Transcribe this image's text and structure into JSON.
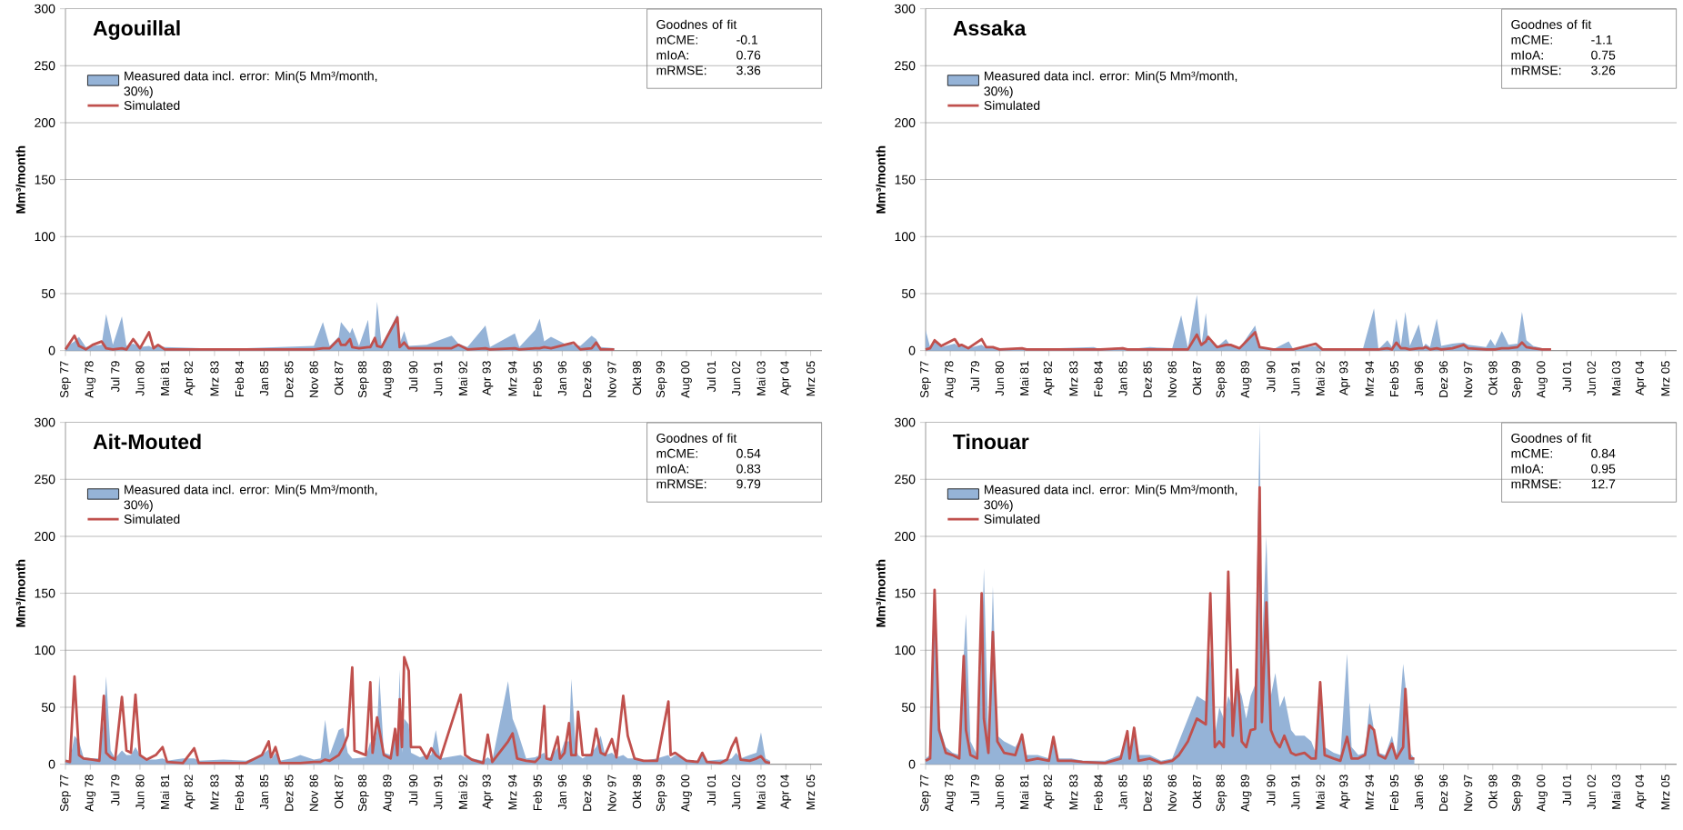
{
  "chart_data": [
    {
      "type": "line",
      "title": "Agouillal",
      "ylabel": "Mm³/month",
      "xlim": [
        "1977-09",
        "2005-08"
      ],
      "ylim": [
        0,
        300
      ],
      "yticks": [
        0,
        50,
        100,
        150,
        200,
        250,
        300
      ],
      "grid": "y",
      "legend": "top left",
      "xticks": [
        {
          "value": "1977-09",
          "label": "Sep 77"
        },
        {
          "value": "1978-08",
          "label": "Aug 78"
        },
        {
          "value": "1979-07",
          "label": "Jul 79"
        },
        {
          "value": "1980-06",
          "label": "Jun 80"
        },
        {
          "value": "1981-05",
          "label": "Mai 81"
        },
        {
          "value": "1982-04",
          "label": "Apr 82"
        },
        {
          "value": "1983-03",
          "label": "Mrz 83"
        },
        {
          "value": "1984-02",
          "label": "Feb 84"
        },
        {
          "value": "1985-01",
          "label": "Jan 85"
        },
        {
          "value": "1985-12",
          "label": "Dez 85"
        },
        {
          "value": "1986-11",
          "label": "Nov 86"
        },
        {
          "value": "1987-10",
          "label": "Okt 87"
        },
        {
          "value": "1988-09",
          "label": "Sep 88"
        },
        {
          "value": "1989-08",
          "label": "Aug 89"
        },
        {
          "value": "1990-07",
          "label": "Jul 90"
        },
        {
          "value": "1991-06",
          "label": "Jun 91"
        },
        {
          "value": "1992-05",
          "label": "Mai 92"
        },
        {
          "value": "1993-04",
          "label": "Apr 93"
        },
        {
          "value": "1994-03",
          "label": "Mrz 94"
        },
        {
          "value": "1995-02",
          "label": "Feb 95"
        },
        {
          "value": "1996-01",
          "label": "Jan 96"
        },
        {
          "value": "1996-12",
          "label": "Dez 96"
        },
        {
          "value": "1997-11",
          "label": "Nov 97"
        },
        {
          "value": "1998-10",
          "label": "Okt 98"
        },
        {
          "value": "1999-09",
          "label": "Sep 99"
        },
        {
          "value": "2000-08",
          "label": "Aug 00"
        },
        {
          "value": "2001-07",
          "label": "Jul 01"
        },
        {
          "value": "2002-06",
          "label": "Jun 02"
        },
        {
          "value": "2003-05",
          "label": "Mai 03"
        },
        {
          "value": "2004-04",
          "label": "Apr 04"
        },
        {
          "value": "2005-03",
          "label": "Mrz 05"
        }
      ],
      "annotations": [
        "Goodnes of fit",
        "mCME:",
        "-0.1",
        "mIoA:",
        "0.76",
        "mRMSE:",
        "3.36"
      ],
      "series": [
        {
          "name": "Measured data incl. error: Min(5 Mm³/month, 30%)",
          "type": "area",
          "color": "#95b3d7",
          "x": [
            "1977-09",
            "1978-01",
            "1978-03",
            "1978-06",
            "1978-09",
            "1979-01",
            "1979-03",
            "1979-06",
            "1979-10",
            "1979-12",
            "1980-03",
            "1980-06",
            "1980-10",
            "1980-12",
            "1981-02",
            "1981-05",
            "1982-09",
            "1984-05",
            "1985-08",
            "1986-11",
            "1987-03",
            "1987-06",
            "1987-10",
            "1987-11",
            "1988-01",
            "1988-03",
            "1988-04",
            "1988-07",
            "1988-11",
            "1988-12",
            "1989-02",
            "1989-03",
            "1989-05",
            "1989-12",
            "1990-01",
            "1990-03",
            "1990-05",
            "1991-01",
            "1991-12",
            "1992-03",
            "1992-07",
            "1993-03",
            "1993-05",
            "1994-04",
            "1994-06",
            "1995-01",
            "1995-03",
            "1995-05",
            "1995-08",
            "1996-02",
            "1996-06",
            "1996-09",
            "1997-02",
            "1997-04",
            "1997-06",
            "1997-12"
          ],
          "values": [
            3,
            8,
            12,
            3,
            4,
            5,
            32,
            5,
            30,
            4,
            6,
            3,
            4,
            2,
            4,
            3,
            2,
            2,
            3,
            4,
            25,
            4,
            12,
            25,
            20,
            15,
            20,
            4,
            27,
            5,
            12,
            43,
            5,
            32,
            6,
            17,
            4,
            5,
            13,
            6,
            3,
            22,
            3,
            15,
            3,
            18,
            28,
            8,
            12,
            6,
            5,
            4,
            13,
            10,
            3,
            2
          ]
        },
        {
          "name": "Simulated",
          "color": "#c0504d",
          "x": [
            "1977-09",
            "1978-01",
            "1978-03",
            "1978-06",
            "1978-09",
            "1979-01",
            "1979-03",
            "1979-06",
            "1979-10",
            "1979-12",
            "1980-03",
            "1980-06",
            "1980-10",
            "1980-12",
            "1981-02",
            "1981-05",
            "1982-09",
            "1984-05",
            "1985-08",
            "1986-11",
            "1987-03",
            "1987-06",
            "1987-10",
            "1987-11",
            "1988-01",
            "1988-03",
            "1988-04",
            "1988-07",
            "1988-11",
            "1988-12",
            "1989-02",
            "1989-03",
            "1989-05",
            "1989-12",
            "1990-01",
            "1990-03",
            "1990-05",
            "1991-01",
            "1991-12",
            "1992-03",
            "1992-07",
            "1993-03",
            "1993-05",
            "1994-04",
            "1994-06",
            "1995-01",
            "1995-03",
            "1995-05",
            "1995-08",
            "1996-02",
            "1996-06",
            "1996-09",
            "1997-02",
            "1997-04",
            "1997-06",
            "1997-12"
          ],
          "values": [
            1,
            13,
            4,
            1,
            5,
            8,
            2,
            1,
            2,
            1,
            10,
            2,
            16,
            2,
            5,
            1,
            1,
            1,
            1,
            1,
            2,
            2,
            10,
            5,
            5,
            10,
            3,
            2,
            3,
            3,
            11,
            4,
            3,
            29,
            3,
            7,
            2,
            2,
            2,
            5,
            1,
            2,
            1,
            2,
            1,
            2,
            2,
            3,
            2,
            5,
            7,
            1,
            2,
            7,
            1,
            1
          ]
        }
      ]
    },
    {
      "type": "line",
      "title": "Assaka",
      "ylabel": "Mm³/month",
      "xlim": [
        "1977-09",
        "2005-08"
      ],
      "ylim": [
        0,
        300
      ],
      "yticks": [
        0,
        50,
        100,
        150,
        200,
        250,
        300
      ],
      "grid": "y",
      "legend": "top left",
      "xticks": [
        {
          "value": "1977-09",
          "label": "Sep 77"
        },
        {
          "value": "1978-08",
          "label": "Aug 78"
        },
        {
          "value": "1979-07",
          "label": "Jul 79"
        },
        {
          "value": "1980-06",
          "label": "Jun 80"
        },
        {
          "value": "1981-05",
          "label": "Mai 81"
        },
        {
          "value": "1982-04",
          "label": "Apr 82"
        },
        {
          "value": "1983-03",
          "label": "Mrz 83"
        },
        {
          "value": "1984-02",
          "label": "Feb 84"
        },
        {
          "value": "1985-01",
          "label": "Jan 85"
        },
        {
          "value": "1985-12",
          "label": "Dez 85"
        },
        {
          "value": "1986-11",
          "label": "Nov 86"
        },
        {
          "value": "1987-10",
          "label": "Okt 87"
        },
        {
          "value": "1988-09",
          "label": "Sep 88"
        },
        {
          "value": "1989-08",
          "label": "Aug 89"
        },
        {
          "value": "1990-07",
          "label": "Jul 90"
        },
        {
          "value": "1991-06",
          "label": "Jun 91"
        },
        {
          "value": "1992-05",
          "label": "Mai 92"
        },
        {
          "value": "1993-04",
          "label": "Apr 93"
        },
        {
          "value": "1994-03",
          "label": "Mrz 94"
        },
        {
          "value": "1995-02",
          "label": "Feb 95"
        },
        {
          "value": "1996-01",
          "label": "Jan 96"
        },
        {
          "value": "1996-12",
          "label": "Dez 96"
        },
        {
          "value": "1997-11",
          "label": "Nov 97"
        },
        {
          "value": "1998-10",
          "label": "Okt 98"
        },
        {
          "value": "1999-09",
          "label": "Sep 99"
        },
        {
          "value": "2000-08",
          "label": "Aug 00"
        },
        {
          "value": "2001-07",
          "label": "Jul 01"
        },
        {
          "value": "2002-06",
          "label": "Jun 02"
        },
        {
          "value": "2003-05",
          "label": "Mai 03"
        },
        {
          "value": "2004-04",
          "label": "Apr 04"
        },
        {
          "value": "2005-03",
          "label": "Mrz 05"
        }
      ],
      "annotations": [
        "Goodnes of fit",
        "mCME:",
        "-1.1",
        "mIoA:",
        "0.75",
        "mRMSE:",
        "3.26"
      ],
      "series": [
        {
          "name": "Measured data incl. error: Min(5 Mm³/month, 30%)",
          "type": "area",
          "color": "#95b3d7",
          "x": [
            "1977-09",
            "1977-11",
            "1978-01",
            "1978-04",
            "1978-10",
            "1978-12",
            "1979-01",
            "1979-04",
            "1979-10",
            "1979-12",
            "1980-03",
            "1980-06",
            "1981-04",
            "1981-06",
            "1983-12",
            "1984-03",
            "1985-01",
            "1985-03",
            "1986-01",
            "1986-11",
            "1987-03",
            "1987-06",
            "1987-10",
            "1987-12",
            "1988-02",
            "1988-03",
            "1988-07",
            "1988-11",
            "1989-01",
            "1989-05",
            "1989-12",
            "1990-02",
            "1990-08",
            "1991-03",
            "1991-05",
            "1992-03",
            "1992-06",
            "1993-12",
            "1994-05",
            "1994-07",
            "1994-11",
            "1995-01",
            "1995-03",
            "1995-05",
            "1995-07",
            "1995-09",
            "1996-01",
            "1996-03",
            "1996-04",
            "1996-06",
            "1996-09",
            "1996-11",
            "1997-04",
            "1997-09",
            "1997-11",
            "1998-07",
            "1998-09",
            "1998-11",
            "1999-02",
            "1999-05",
            "1999-09",
            "1999-11",
            "2000-01",
            "2000-04",
            "2000-08",
            "2000-12"
          ],
          "values": [
            18,
            3,
            8,
            3,
            6,
            3,
            4,
            2,
            5,
            2,
            3,
            1,
            2,
            1,
            3,
            1,
            3,
            1,
            3,
            2,
            31,
            2,
            49,
            4,
            33,
            10,
            3,
            10,
            4,
            2,
            22,
            3,
            1,
            8,
            1,
            4,
            1,
            1,
            37,
            1,
            9,
            3,
            28,
            4,
            34,
            4,
            23,
            3,
            6,
            3,
            28,
            4,
            6,
            7,
            5,
            3,
            10,
            4,
            17,
            5,
            6,
            34,
            9,
            4,
            2,
            1
          ]
        },
        {
          "name": "Simulated",
          "color": "#c0504d",
          "x": [
            "1977-09",
            "1977-11",
            "1978-01",
            "1978-04",
            "1978-10",
            "1978-12",
            "1979-01",
            "1979-04",
            "1979-10",
            "1979-12",
            "1980-03",
            "1980-06",
            "1981-04",
            "1981-06",
            "1983-12",
            "1984-03",
            "1985-01",
            "1985-03",
            "1986-01",
            "1986-11",
            "1987-03",
            "1987-06",
            "1987-10",
            "1987-12",
            "1988-02",
            "1988-03",
            "1988-07",
            "1988-11",
            "1989-01",
            "1989-05",
            "1989-12",
            "1990-02",
            "1990-08",
            "1991-03",
            "1991-05",
            "1992-03",
            "1992-06",
            "1993-12",
            "1994-05",
            "1994-07",
            "1994-11",
            "1995-01",
            "1995-03",
            "1995-05",
            "1995-07",
            "1995-09",
            "1996-01",
            "1996-03",
            "1996-04",
            "1996-06",
            "1996-09",
            "1996-11",
            "1997-04",
            "1997-09",
            "1997-11",
            "1998-07",
            "1998-09",
            "1998-11",
            "1999-02",
            "1999-05",
            "1999-09",
            "1999-11",
            "2000-01",
            "2000-04",
            "2000-08",
            "2000-12"
          ],
          "values": [
            1,
            2,
            9,
            4,
            10,
            4,
            5,
            2,
            10,
            3,
            3,
            1,
            2,
            1,
            1,
            1,
            2,
            1,
            1,
            1,
            1,
            1,
            14,
            5,
            8,
            12,
            3,
            5,
            5,
            2,
            16,
            3,
            1,
            1,
            1,
            6,
            1,
            1,
            1,
            1,
            2,
            1,
            7,
            2,
            2,
            1,
            2,
            2,
            3,
            1,
            2,
            1,
            2,
            5,
            2,
            1,
            1,
            1,
            2,
            2,
            3,
            7,
            3,
            2,
            1,
            1
          ]
        }
      ]
    },
    {
      "type": "line",
      "title": "Ait-Mouted",
      "ylabel": "Mm³/month",
      "xlim": [
        "1977-09",
        "2005-08"
      ],
      "ylim": [
        0,
        300
      ],
      "yticks": [
        0,
        50,
        100,
        150,
        200,
        250,
        300
      ],
      "grid": "y",
      "legend": "top left",
      "xticks": [
        {
          "value": "1977-09",
          "label": "Sep 77"
        },
        {
          "value": "1978-08",
          "label": "Aug 78"
        },
        {
          "value": "1979-07",
          "label": "Jul 79"
        },
        {
          "value": "1980-06",
          "label": "Jun 80"
        },
        {
          "value": "1981-05",
          "label": "Mai 81"
        },
        {
          "value": "1982-04",
          "label": "Apr 82"
        },
        {
          "value": "1983-03",
          "label": "Mrz 83"
        },
        {
          "value": "1984-02",
          "label": "Feb 84"
        },
        {
          "value": "1985-01",
          "label": "Jan 85"
        },
        {
          "value": "1985-12",
          "label": "Dez 85"
        },
        {
          "value": "1986-11",
          "label": "Nov 86"
        },
        {
          "value": "1987-10",
          "label": "Okt 87"
        },
        {
          "value": "1988-09",
          "label": "Sep 88"
        },
        {
          "value": "1989-08",
          "label": "Aug 89"
        },
        {
          "value": "1990-07",
          "label": "Jul 90"
        },
        {
          "value": "1991-06",
          "label": "Jun 91"
        },
        {
          "value": "1992-05",
          "label": "Mai 92"
        },
        {
          "value": "1993-04",
          "label": "Apr 93"
        },
        {
          "value": "1994-03",
          "label": "Mrz 94"
        },
        {
          "value": "1995-02",
          "label": "Feb 95"
        },
        {
          "value": "1996-01",
          "label": "Jan 96"
        },
        {
          "value": "1996-12",
          "label": "Dez 96"
        },
        {
          "value": "1997-11",
          "label": "Nov 97"
        },
        {
          "value": "1998-10",
          "label": "Okt 98"
        },
        {
          "value": "1999-09",
          "label": "Sep 99"
        },
        {
          "value": "2000-08",
          "label": "Aug 00"
        },
        {
          "value": "2001-07",
          "label": "Jul 01"
        },
        {
          "value": "2002-06",
          "label": "Jun 02"
        },
        {
          "value": "2003-05",
          "label": "Mai 03"
        },
        {
          "value": "2004-04",
          "label": "Apr 04"
        },
        {
          "value": "2005-03",
          "label": "Mrz 05"
        }
      ],
      "annotations": [
        "Goodnes of fit",
        "mCME:",
        "0.54",
        "mIoA:",
        "0.83",
        "mRMSE:",
        "9.79"
      ],
      "series": [
        {
          "name": "Measured data incl. error: Min(5 Mm³/month, 30%)",
          "type": "area",
          "color": "#95b3d7",
          "x": [
            "1977-09",
            "1977-11",
            "1978-01",
            "1978-03",
            "1978-05",
            "1978-09",
            "1978-12",
            "1979-02",
            "1979-03",
            "1979-05",
            "1979-07",
            "1979-10",
            "1979-12",
            "1980-02",
            "1980-04",
            "1980-06",
            "1980-09",
            "1981-01",
            "1981-04",
            "1981-06",
            "1982-01",
            "1982-06",
            "1982-08",
            "1983-07",
            "1984-05",
            "1984-12",
            "1985-03",
            "1985-04",
            "1985-06",
            "1985-08",
            "1986-01",
            "1986-05",
            "1986-11",
            "1987-02",
            "1987-04",
            "1987-06",
            "1987-10",
            "1987-12",
            "1988-02",
            "1988-04",
            "1988-05",
            "1988-10",
            "1988-12",
            "1989-01",
            "1989-03",
            "1989-04",
            "1989-06",
            "1989-09",
            "1989-11",
            "1989-12",
            "1990-01",
            "1990-02",
            "1990-03",
            "1990-05",
            "1990-06",
            "1990-10",
            "1991-01",
            "1991-03",
            "1991-05",
            "1991-07",
            "1992-04",
            "1992-06",
            "1992-09",
            "1993-02",
            "1993-04",
            "1993-06",
            "1994-01",
            "1994-03",
            "1994-05",
            "1994-09",
            "1995-01",
            "1995-03",
            "1995-05",
            "1995-06",
            "1995-08",
            "1995-11",
            "1995-12",
            "1996-02",
            "1996-04",
            "1996-05",
            "1996-07",
            "1996-08",
            "1996-10",
            "1997-02",
            "1997-04",
            "1997-06",
            "1997-08",
            "1997-11",
            "1998-01",
            "1998-04",
            "1998-06",
            "1998-09",
            "1999-01",
            "1999-07",
            "1999-12",
            "2000-01",
            "2000-03",
            "2000-08",
            "2001-01",
            "2001-03",
            "2001-05",
            "2001-11",
            "2002-02",
            "2002-04",
            "2002-06",
            "2002-08",
            "2002-12",
            "2003-03",
            "2003-05",
            "2003-07",
            "2003-09"
          ],
          "values": [
            3,
            3,
            25,
            20,
            6,
            5,
            5,
            40,
            77,
            12,
            5,
            12,
            8,
            8,
            15,
            8,
            4,
            4,
            5,
            3,
            5,
            5,
            3,
            4,
            3,
            8,
            13,
            4,
            10,
            3,
            5,
            8,
            4,
            5,
            39,
            8,
            30,
            32,
            10,
            5,
            5,
            6,
            20,
            8,
            30,
            78,
            10,
            8,
            25,
            15,
            83,
            10,
            40,
            35,
            10,
            6,
            8,
            8,
            30,
            5,
            8,
            6,
            5,
            3,
            6,
            3,
            73,
            40,
            30,
            5,
            6,
            8,
            10,
            5,
            6,
            15,
            8,
            20,
            20,
            75,
            15,
            8,
            5,
            10,
            15,
            25,
            8,
            10,
            6,
            8,
            5,
            5,
            3,
            5,
            8,
            5,
            8,
            4,
            3,
            8,
            3,
            4,
            4,
            5,
            10,
            5,
            8,
            10,
            28,
            5,
            3
          ]
        },
        {
          "name": "Simulated",
          "color": "#c0504d",
          "x": [
            "1977-09",
            "1977-11",
            "1978-01",
            "1978-03",
            "1978-05",
            "1978-09",
            "1978-12",
            "1979-02",
            "1979-03",
            "1979-05",
            "1979-07",
            "1979-10",
            "1979-12",
            "1980-02",
            "1980-04",
            "1980-06",
            "1980-09",
            "1981-01",
            "1981-04",
            "1981-06",
            "1982-01",
            "1982-06",
            "1982-08",
            "1983-07",
            "1984-05",
            "1984-12",
            "1985-03",
            "1985-04",
            "1985-06",
            "1985-08",
            "1986-01",
            "1986-05",
            "1986-11",
            "1987-02",
            "1987-04",
            "1987-06",
            "1987-10",
            "1987-12",
            "1988-02",
            "1988-04",
            "1988-05",
            "1988-10",
            "1988-12",
            "1989-01",
            "1989-03",
            "1989-04",
            "1989-06",
            "1989-09",
            "1989-11",
            "1989-12",
            "1990-01",
            "1990-02",
            "1990-03",
            "1990-05",
            "1990-06",
            "1990-10",
            "1991-01",
            "1991-03",
            "1991-05",
            "1991-07",
            "1992-04",
            "1992-06",
            "1992-09",
            "1993-02",
            "1993-04",
            "1993-06",
            "1994-01",
            "1994-03",
            "1994-05",
            "1994-09",
            "1995-01",
            "1995-03",
            "1995-05",
            "1995-06",
            "1995-08",
            "1995-11",
            "1995-12",
            "1996-02",
            "1996-04",
            "1996-05",
            "1996-07",
            "1996-08",
            "1996-10",
            "1997-02",
            "1997-04",
            "1997-06",
            "1997-08",
            "1997-11",
            "1998-01",
            "1998-04",
            "1998-06",
            "1998-09",
            "1999-01",
            "1999-07",
            "1999-12",
            "2000-01",
            "2000-03",
            "2000-08",
            "2001-01",
            "2001-03",
            "2001-05",
            "2001-11",
            "2002-02",
            "2002-04",
            "2002-06",
            "2002-08",
            "2002-12",
            "2003-03",
            "2003-05",
            "2003-07",
            "2003-09"
          ],
          "values": [
            3,
            2,
            77,
            8,
            5,
            4,
            3,
            60,
            10,
            6,
            4,
            59,
            12,
            10,
            61,
            8,
            4,
            8,
            15,
            2,
            1,
            14,
            1,
            1,
            1,
            8,
            20,
            6,
            15,
            1,
            1,
            1,
            2,
            2,
            4,
            3,
            8,
            15,
            25,
            85,
            12,
            8,
            72,
            10,
            41,
            30,
            8,
            5,
            31,
            8,
            57,
            15,
            94,
            82,
            15,
            15,
            5,
            14,
            8,
            5,
            61,
            8,
            4,
            1,
            26,
            2,
            20,
            27,
            5,
            3,
            2,
            6,
            51,
            5,
            4,
            24,
            5,
            10,
            36,
            8,
            8,
            46,
            8,
            8,
            31,
            10,
            8,
            22,
            6,
            60,
            25,
            5,
            3,
            3,
            55,
            8,
            10,
            3,
            2,
            10,
            2,
            1,
            4,
            15,
            23,
            4,
            3,
            5,
            7,
            2,
            1
          ]
        }
      ]
    },
    {
      "type": "line",
      "title": "Tinouar",
      "ylabel": "Mm³/month",
      "xlim": [
        "1977-09",
        "2005-08"
      ],
      "ylim": [
        0,
        300
      ],
      "yticks": [
        0,
        50,
        100,
        150,
        200,
        250,
        300
      ],
      "grid": "y",
      "legend": "top left",
      "xticks": [
        {
          "value": "1977-09",
          "label": "Sep 77"
        },
        {
          "value": "1978-08",
          "label": "Aug 78"
        },
        {
          "value": "1979-07",
          "label": "Jul 79"
        },
        {
          "value": "1980-06",
          "label": "Jun 80"
        },
        {
          "value": "1981-05",
          "label": "Mai 81"
        },
        {
          "value": "1982-04",
          "label": "Apr 82"
        },
        {
          "value": "1983-03",
          "label": "Mrz 83"
        },
        {
          "value": "1984-02",
          "label": "Feb 84"
        },
        {
          "value": "1985-01",
          "label": "Jan 85"
        },
        {
          "value": "1985-12",
          "label": "Dez 85"
        },
        {
          "value": "1986-11",
          "label": "Nov 86"
        },
        {
          "value": "1987-10",
          "label": "Okt 87"
        },
        {
          "value": "1988-09",
          "label": "Sep 88"
        },
        {
          "value": "1989-08",
          "label": "Aug 89"
        },
        {
          "value": "1990-07",
          "label": "Jul 90"
        },
        {
          "value": "1991-06",
          "label": "Jun 91"
        },
        {
          "value": "1992-05",
          "label": "Mai 92"
        },
        {
          "value": "1993-04",
          "label": "Apr 93"
        },
        {
          "value": "1994-03",
          "label": "Mrz 94"
        },
        {
          "value": "1995-02",
          "label": "Feb 95"
        },
        {
          "value": "1996-01",
          "label": "Jan 96"
        },
        {
          "value": "1996-12",
          "label": "Dez 96"
        },
        {
          "value": "1997-11",
          "label": "Nov 97"
        },
        {
          "value": "1998-10",
          "label": "Okt 98"
        },
        {
          "value": "1999-09",
          "label": "Sep 99"
        },
        {
          "value": "2000-08",
          "label": "Aug 00"
        },
        {
          "value": "2001-07",
          "label": "Jul 01"
        },
        {
          "value": "2002-06",
          "label": "Jun 02"
        },
        {
          "value": "2003-05",
          "label": "Mai 03"
        },
        {
          "value": "2004-04",
          "label": "Apr 04"
        },
        {
          "value": "2005-03",
          "label": "Mrz 05"
        }
      ],
      "annotations": [
        "Goodnes of fit",
        "mCME:",
        "0.84",
        "mIoA:",
        "0.95",
        "mRMSE:",
        "12.7"
      ],
      "series": [
        {
          "name": "Measured data incl. error: Min(5 Mm³/month, 30%)",
          "type": "area",
          "color": "#95b3d7",
          "x": [
            "1977-09",
            "1977-11",
            "1978-01",
            "1978-03",
            "1978-06",
            "1978-09",
            "1978-12",
            "1979-02",
            "1979-03",
            "1979-05",
            "1979-08",
            "1979-10",
            "1979-11",
            "1980-01",
            "1980-03",
            "1980-05",
            "1980-08",
            "1981-01",
            "1981-04",
            "1981-06",
            "1981-11",
            "1982-04",
            "1982-06",
            "1982-08",
            "1983-02",
            "1983-07",
            "1984-05",
            "1984-12",
            "1985-03",
            "1985-04",
            "1985-06",
            "1985-08",
            "1986-01",
            "1986-06",
            "1986-11",
            "1987-02",
            "1987-06",
            "1987-10",
            "1988-02",
            "1988-04",
            "1988-06",
            "1988-08",
            "1988-10",
            "1988-12",
            "1989-02",
            "1989-04",
            "1989-06",
            "1989-08",
            "1989-10",
            "1989-12",
            "1990-02",
            "1990-03",
            "1990-05",
            "1990-07",
            "1990-09",
            "1990-11",
            "1991-01",
            "1991-04",
            "1991-06",
            "1991-10",
            "1992-01",
            "1992-03",
            "1992-05",
            "1992-07",
            "1992-11",
            "1993-02",
            "1993-05",
            "1993-07",
            "1993-10",
            "1994-01",
            "1994-03",
            "1994-05",
            "1994-07",
            "1994-10",
            "1995-01",
            "1995-03",
            "1995-06",
            "1995-07",
            "1995-09",
            "1995-11"
          ],
          "values": [
            5,
            8,
            150,
            35,
            15,
            10,
            8,
            95,
            132,
            20,
            8,
            100,
            172,
            20,
            156,
            25,
            20,
            15,
            25,
            8,
            8,
            5,
            20,
            5,
            5,
            3,
            3,
            8,
            30,
            8,
            30,
            8,
            8,
            3,
            5,
            20,
            40,
            60,
            55,
            100,
            25,
            50,
            40,
            60,
            50,
            70,
            60,
            40,
            60,
            70,
            300,
            100,
            200,
            60,
            80,
            50,
            60,
            30,
            25,
            25,
            20,
            10,
            60,
            15,
            10,
            8,
            97,
            15,
            8,
            10,
            54,
            30,
            10,
            8,
            25,
            8,
            88,
            70,
            10,
            5
          ]
        },
        {
          "name": "Simulated",
          "color": "#c0504d",
          "x": [
            "1977-09",
            "1977-11",
            "1978-01",
            "1978-03",
            "1978-06",
            "1978-09",
            "1978-12",
            "1979-02",
            "1979-03",
            "1979-05",
            "1979-08",
            "1979-10",
            "1979-11",
            "1980-01",
            "1980-03",
            "1980-05",
            "1980-08",
            "1981-01",
            "1981-04",
            "1981-06",
            "1981-11",
            "1982-04",
            "1982-06",
            "1982-08",
            "1983-02",
            "1983-07",
            "1984-05",
            "1984-12",
            "1985-03",
            "1985-04",
            "1985-06",
            "1985-08",
            "1986-01",
            "1986-06",
            "1986-11",
            "1987-02",
            "1987-06",
            "1987-10",
            "1988-02",
            "1988-04",
            "1988-06",
            "1988-08",
            "1988-10",
            "1988-12",
            "1989-02",
            "1989-04",
            "1989-06",
            "1989-08",
            "1989-10",
            "1989-12",
            "1990-02",
            "1990-03",
            "1990-05",
            "1990-07",
            "1990-09",
            "1990-11",
            "1991-01",
            "1991-04",
            "1991-06",
            "1991-10",
            "1992-01",
            "1992-03",
            "1992-05",
            "1992-07",
            "1992-11",
            "1993-02",
            "1993-05",
            "1993-07",
            "1993-10",
            "1994-01",
            "1994-03",
            "1994-05",
            "1994-07",
            "1994-10",
            "1995-01",
            "1995-03",
            "1995-06",
            "1995-07",
            "1995-09",
            "1995-11"
          ],
          "values": [
            3,
            5,
            153,
            30,
            10,
            8,
            5,
            95,
            30,
            8,
            5,
            150,
            40,
            10,
            116,
            20,
            10,
            8,
            26,
            3,
            5,
            3,
            24,
            3,
            3,
            2,
            1,
            5,
            29,
            5,
            32,
            3,
            5,
            1,
            3,
            8,
            20,
            40,
            35,
            150,
            15,
            20,
            15,
            169,
            25,
            83,
            20,
            15,
            30,
            31,
            243,
            37,
            142,
            30,
            20,
            15,
            25,
            10,
            8,
            10,
            5,
            5,
            72,
            8,
            5,
            3,
            24,
            5,
            5,
            8,
            34,
            30,
            8,
            5,
            18,
            5,
            15,
            66,
            5,
            5
          ]
        }
      ]
    }
  ]
}
